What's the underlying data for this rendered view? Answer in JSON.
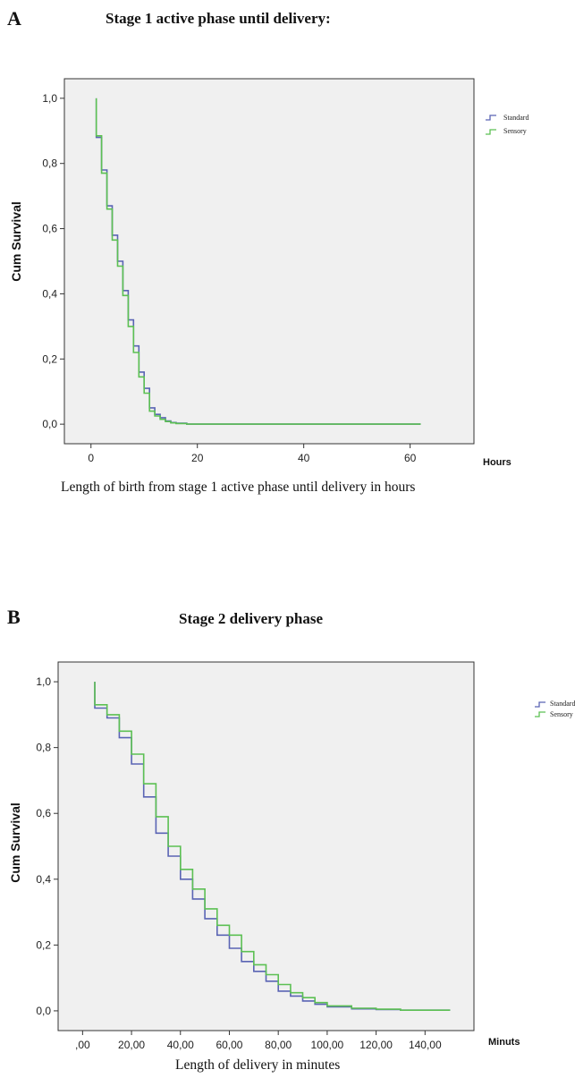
{
  "colors": {
    "standard": "#5a64b4",
    "sensory": "#5cc053",
    "plot_bg": "#f0f0f0",
    "frame": "#333333"
  },
  "panels": [
    {
      "letter": "A",
      "title": "Stage 1 active phase until delivery:",
      "caption": "Length of birth from stage 1 active phase until delivery in hours",
      "legend": [
        "Standard",
        "Sensory"
      ]
    },
    {
      "letter": "B",
      "title": "Stage 2 delivery phase",
      "caption": "Length of delivery in minutes",
      "legend": [
        "Standard",
        "Sensory"
      ]
    }
  ],
  "chart_data": [
    {
      "type": "line",
      "subtype": "kaplan-meier step",
      "ylabel": "Cum Survival",
      "xlabel": "Hours",
      "xlim": [
        -5,
        72
      ],
      "ylim": [
        -0.06,
        1.06
      ],
      "xticks": [
        0,
        20,
        40,
        60
      ],
      "xtick_labels": [
        "0",
        "20",
        "40",
        "60"
      ],
      "yticks": [
        0,
        0.2,
        0.4,
        0.6,
        0.8,
        1.0
      ],
      "ytick_labels": [
        "0,0",
        "0,2",
        "0,4",
        "0,6",
        "0,8",
        "1,0"
      ],
      "legend_position": "top-right outside",
      "series": [
        {
          "name": "Standard",
          "x": [
            1,
            2,
            3,
            4,
            5,
            6,
            7,
            8,
            9,
            10,
            11,
            12,
            13,
            14,
            15,
            16,
            18,
            62
          ],
          "y": [
            0.88,
            0.78,
            0.67,
            0.58,
            0.5,
            0.41,
            0.32,
            0.24,
            0.16,
            0.11,
            0.05,
            0.03,
            0.02,
            0.01,
            0.005,
            0.003,
            0.0,
            0.0
          ]
        },
        {
          "name": "Sensory",
          "x": [
            1,
            2,
            3,
            4,
            5,
            6,
            7,
            8,
            9,
            10,
            11,
            12,
            13,
            14,
            15,
            16,
            18,
            62
          ],
          "y": [
            0.885,
            0.77,
            0.66,
            0.565,
            0.485,
            0.395,
            0.3,
            0.22,
            0.145,
            0.095,
            0.04,
            0.025,
            0.015,
            0.008,
            0.004,
            0.002,
            0.0,
            0.0
          ]
        }
      ]
    },
    {
      "type": "line",
      "subtype": "kaplan-meier step",
      "ylabel": "Cum Survival",
      "xlabel": "Minuts",
      "xlim": [
        -10,
        160
      ],
      "ylim": [
        -0.06,
        1.06
      ],
      "xticks": [
        0,
        20,
        40,
        60,
        80,
        100,
        120,
        140
      ],
      "xtick_labels": [
        ",00",
        "20,00",
        "40,00",
        "60,00",
        "80,00",
        "100,00",
        "120,00",
        "140,00"
      ],
      "yticks": [
        0,
        0.2,
        0.4,
        0.6,
        0.8,
        1.0
      ],
      "ytick_labels": [
        "0,0",
        "0,2",
        "0,4",
        "0,6",
        "0,8",
        "1,0"
      ],
      "legend_position": "top-right outside",
      "series": [
        {
          "name": "Standard",
          "x": [
            5,
            10,
            15,
            20,
            25,
            30,
            35,
            40,
            45,
            50,
            55,
            60,
            65,
            70,
            75,
            80,
            85,
            90,
            95,
            100,
            110,
            120,
            130,
            150
          ],
          "y": [
            0.92,
            0.89,
            0.83,
            0.75,
            0.65,
            0.54,
            0.47,
            0.4,
            0.34,
            0.28,
            0.23,
            0.19,
            0.15,
            0.12,
            0.09,
            0.06,
            0.045,
            0.03,
            0.02,
            0.012,
            0.006,
            0.004,
            0.002,
            0.0
          ]
        },
        {
          "name": "Sensory",
          "x": [
            5,
            10,
            15,
            20,
            25,
            30,
            35,
            40,
            45,
            50,
            55,
            60,
            65,
            70,
            75,
            80,
            85,
            90,
            95,
            100,
            110,
            120,
            130,
            150
          ],
          "y": [
            0.93,
            0.9,
            0.85,
            0.78,
            0.69,
            0.59,
            0.5,
            0.43,
            0.37,
            0.31,
            0.26,
            0.23,
            0.18,
            0.14,
            0.11,
            0.08,
            0.055,
            0.04,
            0.025,
            0.015,
            0.008,
            0.005,
            0.002,
            0.0
          ]
        }
      ]
    }
  ]
}
